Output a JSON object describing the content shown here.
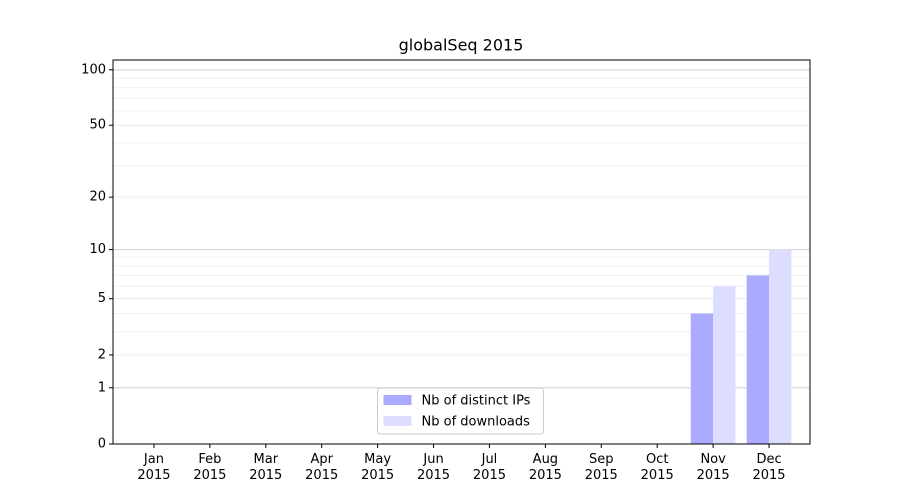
{
  "chart_data": {
    "type": "bar",
    "title": "globalSeq 2015",
    "categories": [
      "Jan\n2015",
      "Feb\n2015",
      "Mar\n2015",
      "Apr\n2015",
      "May\n2015",
      "Jun\n2015",
      "Jul\n2015",
      "Aug\n2015",
      "Sep\n2015",
      "Oct\n2015",
      "Nov\n2015",
      "Dec\n2015"
    ],
    "series": [
      {
        "name": "Nb of distinct IPs",
        "color": "#aaaaff",
        "values": [
          0,
          0,
          0,
          0,
          0,
          0,
          0,
          0,
          0,
          0,
          4,
          7
        ]
      },
      {
        "name": "Nb of downloads",
        "color": "#ddddff",
        "values": [
          0,
          0,
          0,
          0,
          0,
          0,
          0,
          0,
          0,
          0,
          6,
          10
        ]
      }
    ],
    "yscale": "log1p",
    "ylim": [
      0,
      113
    ],
    "yticks": [
      0,
      1,
      2,
      5,
      10,
      20,
      50,
      100
    ],
    "minor_yticks": [
      3,
      4,
      6,
      7,
      8,
      9,
      30,
      40,
      60,
      70,
      80,
      90
    ],
    "grid": true,
    "legend": "lower center"
  }
}
